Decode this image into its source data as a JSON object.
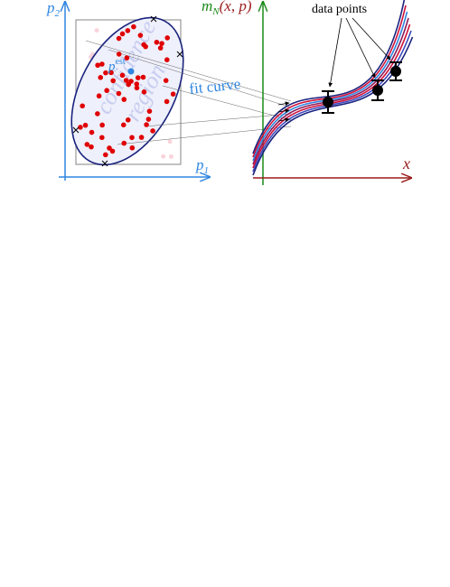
{
  "left_panel": {
    "y_axis_label": {
      "base": "p",
      "sub": "2"
    },
    "x_axis_label": {
      "base": "p",
      "sub": "1"
    },
    "estimate_label": {
      "base": "p",
      "sup": "est"
    },
    "region_label": [
      "confidence",
      "region"
    ]
  },
  "callout": "fit curve",
  "right_panel": {
    "y_axis_label": {
      "base": "m",
      "sub": "N",
      "args": "(x, p)"
    },
    "x_axis_label": "x",
    "data_label": "data points"
  }
}
